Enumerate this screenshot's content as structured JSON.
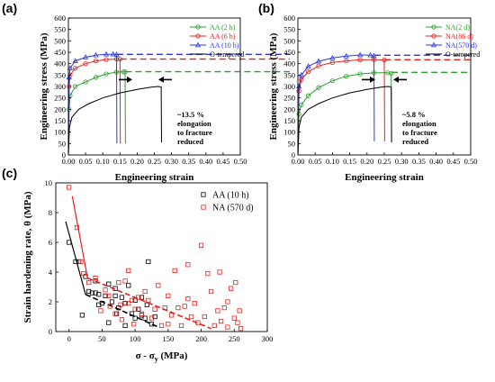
{
  "colors": {
    "green": "#2ca02c",
    "red": "#e8201b",
    "blue": "#2a36e8",
    "black": "#000000"
  },
  "chart_data": [
    {
      "panel": "(a)",
      "type": "line",
      "xlabel": "Engineering strain",
      "ylabel": "Engineering stress (MPa)",
      "xlim": [
        0.0,
        0.5
      ],
      "ylim": [
        0,
        600
      ],
      "x_ticks": [
        "0.00",
        "0.05",
        "0.10",
        "0.15",
        "0.20",
        "0.25",
        "0.30",
        "0.35",
        "0.40",
        "0.45",
        "0.50"
      ],
      "y_ticks": [
        "0",
        "50",
        "100",
        "150",
        "200",
        "250",
        "300",
        "350",
        "400",
        "450",
        "500",
        "550",
        "600"
      ],
      "legend_position": "top-right",
      "series": [
        {
          "name": "AA (2 h)",
          "color_key": "green",
          "marker": "circle",
          "points": [
            [
              0.0,
              0
            ],
            [
              0.002,
              200
            ],
            [
              0.005,
              260
            ],
            [
              0.02,
              300
            ],
            [
              0.05,
              320
            ],
            [
              0.08,
              340
            ],
            [
              0.11,
              355
            ],
            [
              0.14,
              363
            ],
            [
              0.16,
              364
            ],
            [
              0.165,
              364
            ],
            [
              0.166,
              50
            ]
          ],
          "dash_level": 365,
          "fracture": 0.166
        },
        {
          "name": "AA (6 h)",
          "color_key": "red",
          "marker": "circle",
          "points": [
            [
              0.0,
              0
            ],
            [
              0.002,
              300
            ],
            [
              0.005,
              350
            ],
            [
              0.02,
              380
            ],
            [
              0.05,
              400
            ],
            [
              0.08,
              412
            ],
            [
              0.11,
              418
            ],
            [
              0.14,
              420
            ],
            [
              0.15,
              420
            ],
            [
              0.151,
              50
            ]
          ],
          "dash_level": 420,
          "fracture": 0.151
        },
        {
          "name": "AA (10 h)",
          "color_key": "blue",
          "marker": "triangle",
          "points": [
            [
              0.0,
              0
            ],
            [
              0.002,
              340
            ],
            [
              0.005,
              380
            ],
            [
              0.02,
              412
            ],
            [
              0.05,
              428
            ],
            [
              0.08,
              437
            ],
            [
              0.11,
              441
            ],
            [
              0.13,
              441
            ],
            [
              0.14,
              440
            ],
            [
              0.141,
              50
            ]
          ],
          "dash_level": 441,
          "fracture": 0.141
        },
        {
          "name": "O-tempered",
          "color_key": "black",
          "marker": "none",
          "points": [
            [
              0.0,
              0
            ],
            [
              0.003,
              120
            ],
            [
              0.01,
              165
            ],
            [
              0.03,
              200
            ],
            [
              0.06,
              225
            ],
            [
              0.1,
              250
            ],
            [
              0.15,
              272
            ],
            [
              0.2,
              287
            ],
            [
              0.24,
              297
            ],
            [
              0.26,
              300
            ],
            [
              0.27,
              298
            ],
            [
              0.271,
              55
            ]
          ],
          "fracture": 0.271
        }
      ],
      "annotation": [
        "~13.5 %",
        "elongation",
        "to fracture",
        "reduced"
      ]
    },
    {
      "panel": "(b)",
      "type": "line",
      "xlabel": "Engineering strain",
      "ylabel": "Engineering stress (MPa)",
      "xlim": [
        0.0,
        0.5
      ],
      "ylim": [
        0,
        600
      ],
      "x_ticks": [
        "0.00",
        "0.05",
        "0.10",
        "0.15",
        "0.20",
        "0.25",
        "0.30",
        "0.35",
        "0.40",
        "0.45",
        "0.50"
      ],
      "y_ticks": [
        "0",
        "50",
        "100",
        "150",
        "200",
        "250",
        "300",
        "350",
        "400",
        "450",
        "500",
        "550",
        "600"
      ],
      "legend_position": "top-right",
      "series": [
        {
          "name": "NA(2 d)",
          "color_key": "green",
          "marker": "circle",
          "points": [
            [
              0.0,
              0
            ],
            [
              0.003,
              180
            ],
            [
              0.01,
              220
            ],
            [
              0.03,
              260
            ],
            [
              0.06,
              295
            ],
            [
              0.1,
              325
            ],
            [
              0.14,
              345
            ],
            [
              0.18,
              355
            ],
            [
              0.22,
              360
            ],
            [
              0.26,
              360
            ],
            [
              0.27,
              358
            ],
            [
              0.271,
              60
            ]
          ],
          "dash_level": 362,
          "fracture": 0.271
        },
        {
          "name": "NA(86 d)",
          "color_key": "red",
          "marker": "circle",
          "points": [
            [
              0.0,
              0
            ],
            [
              0.003,
              280
            ],
            [
              0.01,
              330
            ],
            [
              0.03,
              365
            ],
            [
              0.06,
              390
            ],
            [
              0.1,
              405
            ],
            [
              0.14,
              412
            ],
            [
              0.18,
              417
            ],
            [
              0.22,
              418
            ],
            [
              0.25,
              416
            ],
            [
              0.251,
              60
            ]
          ],
          "dash_level": 417,
          "fracture": 0.251
        },
        {
          "name": "NA(570 d)",
          "color_key": "blue",
          "marker": "triangle",
          "points": [
            [
              0.0,
              0
            ],
            [
              0.003,
              300
            ],
            [
              0.01,
              350
            ],
            [
              0.03,
              388
            ],
            [
              0.06,
              410
            ],
            [
              0.1,
              425
            ],
            [
              0.14,
              433
            ],
            [
              0.18,
              438
            ],
            [
              0.21,
              437
            ],
            [
              0.22,
              434
            ],
            [
              0.221,
              60
            ]
          ],
          "dash_level": 437,
          "fracture": 0.221
        },
        {
          "name": "O-tempered",
          "color_key": "black",
          "marker": "none",
          "points": [
            [
              0.0,
              0
            ],
            [
              0.003,
              120
            ],
            [
              0.01,
              165
            ],
            [
              0.03,
              200
            ],
            [
              0.06,
              225
            ],
            [
              0.1,
              250
            ],
            [
              0.15,
              272
            ],
            [
              0.2,
              287
            ],
            [
              0.24,
              297
            ],
            [
              0.26,
              300
            ],
            [
              0.27,
              298
            ],
            [
              0.271,
              55
            ]
          ],
          "fracture": 0.271
        }
      ],
      "annotation": [
        "~5.8 %",
        "elongation",
        "to fracture",
        "reduced"
      ]
    },
    {
      "panel": "(c)",
      "type": "scatter",
      "xlabel": "σ - σ",
      "xlabel_sub": "y",
      "xlabel_unit": " (MPa)",
      "ylabel": "Strain hardening rate, θ (MPa)",
      "xlim": [
        -20,
        300
      ],
      "ylim": [
        0,
        10
      ],
      "x_ticks": [
        "0",
        "50",
        "100",
        "150",
        "200",
        "250",
        "300"
      ],
      "y_ticks": [
        "0",
        "2",
        "4",
        "6",
        "8",
        "10"
      ],
      "legend_position": "top-right",
      "series": [
        {
          "name": "AA (10 h)",
          "color_key": "black",
          "marker": "square",
          "points": [
            [
              0,
              6.0
            ],
            [
              10,
              4.7
            ],
            [
              15,
              4.7
            ],
            [
              20,
              1.1
            ],
            [
              25,
              3.7
            ],
            [
              30,
              2.7
            ],
            [
              35,
              2.6
            ],
            [
              40,
              2.6
            ],
            [
              45,
              2.5
            ],
            [
              50,
              1.9
            ],
            [
              55,
              2.4
            ],
            [
              60,
              3.2
            ],
            [
              65,
              2.0
            ],
            [
              70,
              2.4
            ],
            [
              72,
              1.2
            ],
            [
              75,
              1.6
            ],
            [
              80,
              2.3
            ],
            [
              85,
              1.9
            ],
            [
              90,
              3.1
            ],
            [
              95,
              1.2
            ],
            [
              100,
              2.1
            ],
            [
              105,
              1.5
            ],
            [
              110,
              1.1
            ],
            [
              115,
              0.9
            ],
            [
              118,
              1.8
            ],
            [
              120,
              4.7
            ],
            [
              125,
              0.5
            ],
            [
              130,
              1.0
            ],
            [
              60,
              0.6
            ],
            [
              45,
              1.8
            ],
            [
              85,
              0.4
            ],
            [
              100,
              0.9
            ],
            [
              40,
              3.4
            ],
            [
              70,
              2.9
            ],
            [
              110,
              2.3
            ]
          ],
          "fit_lines": [
            [
              [
                -5,
                7.4
              ],
              [
                25,
                2.5
              ]
            ],
            [
              [
                25,
                2.5
              ],
              [
                135,
                0.3
              ]
            ]
          ]
        },
        {
          "name": "NA (570 d)",
          "color_key": "red",
          "marker": "square",
          "points": [
            [
              0,
              9.7
            ],
            [
              12,
              7.0
            ],
            [
              18,
              4.7
            ],
            [
              22,
              3.9
            ],
            [
              30,
              3.3
            ],
            [
              40,
              3.6
            ],
            [
              48,
              1.4
            ],
            [
              55,
              2.8
            ],
            [
              60,
              2.4
            ],
            [
              62,
              1.7
            ],
            [
              70,
              1.2
            ],
            [
              75,
              3.3
            ],
            [
              78,
              1.8
            ],
            [
              80,
              0.8
            ],
            [
              85,
              3.4
            ],
            [
              90,
              1.9
            ],
            [
              95,
              2.1
            ],
            [
              98,
              0.5
            ],
            [
              100,
              1.5
            ],
            [
              105,
              2.3
            ],
            [
              110,
              1.2
            ],
            [
              115,
              2.7
            ],
            [
              120,
              2.1
            ],
            [
              125,
              0.9
            ],
            [
              130,
              1.5
            ],
            [
              135,
              3.1
            ],
            [
              140,
              0.4
            ],
            [
              145,
              1.6
            ],
            [
              150,
              2.4
            ],
            [
              155,
              1.1
            ],
            [
              160,
              4.1
            ],
            [
              165,
              1.6
            ],
            [
              170,
              0.4
            ],
            [
              175,
              1.7
            ],
            [
              180,
              2.2
            ],
            [
              185,
              1.0
            ],
            [
              190,
              1.9
            ],
            [
              195,
              0.6
            ],
            [
              200,
              5.8
            ],
            [
              205,
              1.0
            ],
            [
              210,
              3.9
            ],
            [
              215,
              2.7
            ],
            [
              220,
              0.4
            ],
            [
              225,
              1.4
            ],
            [
              228,
              4.0
            ],
            [
              230,
              0.7
            ],
            [
              235,
              1.6
            ],
            [
              240,
              0.3
            ],
            [
              245,
              2.9
            ],
            [
              250,
              0.9
            ],
            [
              252,
              3.3
            ],
            [
              255,
              0.6
            ],
            [
              258,
              1.4
            ],
            [
              260,
              0.2
            ],
            [
              90,
              4.1
            ],
            [
              150,
              0.5
            ],
            [
              180,
              4.5
            ],
            [
              240,
              2.0
            ]
          ],
          "fit_lines": [
            [
              [
                5,
                9.1
              ],
              [
                28,
                3.6
              ]
            ],
            [
              [
                28,
                3.6
              ],
              [
                215,
                0.2
              ]
            ]
          ]
        }
      ]
    }
  ]
}
